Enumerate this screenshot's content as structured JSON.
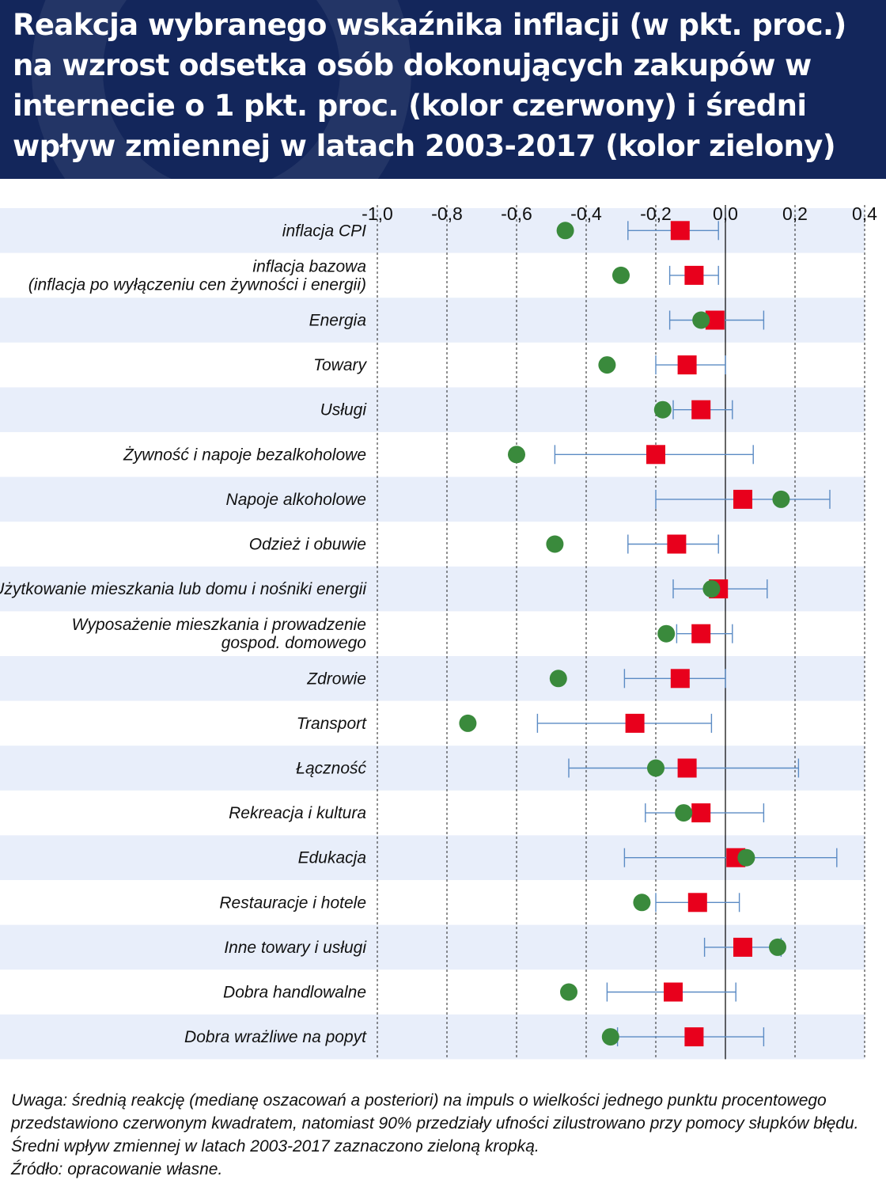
{
  "header": {
    "title": "Reakcja wybranego wskaźnika inflacji (w pkt. proc.) na wzrost odsetka osób dokonujących zakupów w internecie o 1 pkt. proc. (kolor czerwony) i średni wpływ zmiennej w latach 2003-2017 (kolor zielony)"
  },
  "chart_data": {
    "type": "scatter",
    "orientation": "horizontal",
    "xlim": [
      -1.0,
      0.4
    ],
    "x_ticks": [
      "-1,0",
      "-0,8",
      "-0,6",
      "-0,4",
      "-0,2",
      "0,0",
      "0,2",
      "0,4"
    ],
    "x_tick_values": [
      -1.0,
      -0.8,
      -0.6,
      -0.4,
      -0.2,
      0.0,
      0.2,
      0.4
    ],
    "grid": "vertical dashed",
    "colors": {
      "median": "#e8001c",
      "average": "#3a8a3c",
      "error_bar": "#5b8bc4",
      "band": "#e8eefa",
      "zero_line": "#000000"
    },
    "categories": [
      [
        "inflacja CPI"
      ],
      [
        "inflacja bazowa",
        "(inflacja po wyłączeniu cen żywności i energii)"
      ],
      [
        "Energia"
      ],
      [
        "Towary"
      ],
      [
        "Usługi"
      ],
      [
        "Żywność i napoje bezalkoholowe"
      ],
      [
        "Napoje alkoholowe"
      ],
      [
        "Odzież i obuwie"
      ],
      [
        "Użytkowanie mieszkania lub domu i nośniki energii"
      ],
      [
        "Wyposażenie mieszkania i prowadzenie",
        "gospod. domowego"
      ],
      [
        "Zdrowie"
      ],
      [
        "Transport"
      ],
      [
        "Łączność"
      ],
      [
        "Rekreacja i kultura"
      ],
      [
        "Edukacja"
      ],
      [
        "Restauracje i hotele"
      ],
      [
        "Inne towary i usługi"
      ],
      [
        "Dobra handlowalne"
      ],
      [
        "Dobra wrażliwe na popyt"
      ]
    ],
    "series": [
      {
        "marker": "square",
        "values": [
          -0.13,
          -0.09,
          -0.03,
          -0.11,
          -0.07,
          -0.2,
          0.05,
          -0.14,
          -0.02,
          -0.07,
          -0.13,
          -0.26,
          -0.11,
          -0.07,
          0.03,
          -0.08,
          0.05,
          -0.15,
          -0.09
        ]
      },
      {
        "marker": "circle",
        "values": [
          -0.46,
          -0.3,
          -0.07,
          -0.34,
          -0.18,
          -0.6,
          0.16,
          -0.49,
          -0.04,
          -0.17,
          -0.48,
          -0.74,
          -0.2,
          -0.12,
          0.06,
          -0.24,
          0.15,
          -0.45,
          -0.33
        ]
      }
    ],
    "error_low": [
      -0.28,
      -0.16,
      -0.16,
      -0.2,
      -0.15,
      -0.49,
      -0.2,
      -0.28,
      -0.15,
      -0.14,
      -0.29,
      -0.54,
      -0.45,
      -0.23,
      -0.29,
      -0.2,
      -0.06,
      -0.34,
      -0.31
    ],
    "error_high": [
      -0.02,
      -0.02,
      0.11,
      0.0,
      0.02,
      0.08,
      0.3,
      -0.02,
      0.12,
      0.02,
      0.0,
      -0.04,
      0.21,
      0.11,
      0.32,
      0.04,
      0.16,
      0.03,
      0.11
    ]
  },
  "notes": {
    "uwaga": "Uwaga: średnią reakcję (medianę oszacowań a posteriori) na impuls o wielkości jednego punktu procentowego przedstawiono czerwonym kwadratem, natomiast 90% przedziały ufności zilustrowano przy pomocy słupków błędu. Średni wpływ zmiennej w latach 2003-2017 zaznaczono zieloną kropką.",
    "zrodlo": "Źródło: opracowanie własne."
  }
}
